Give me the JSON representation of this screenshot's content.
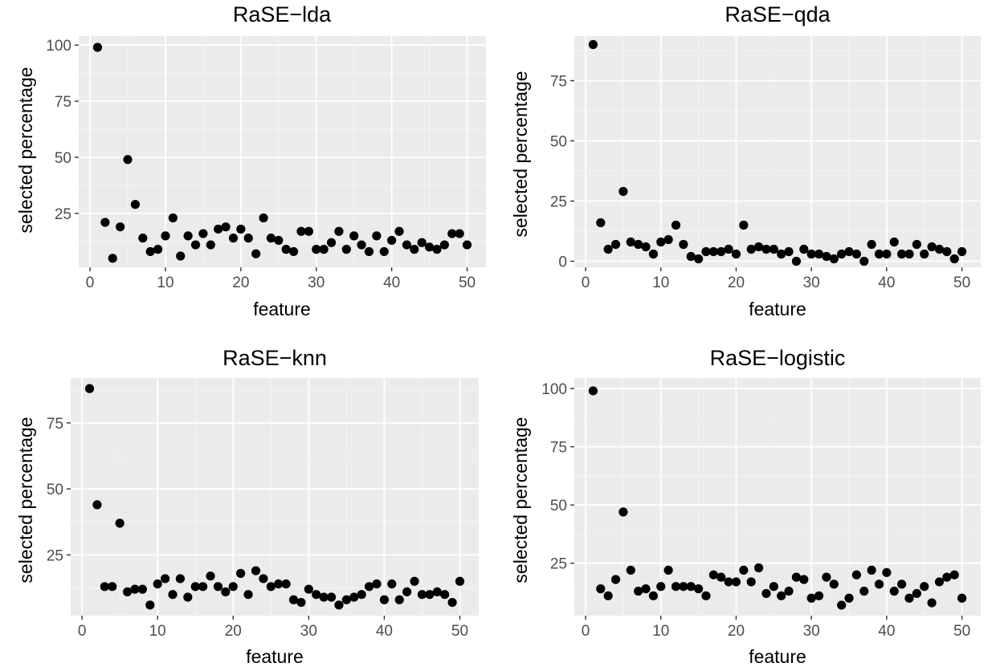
{
  "chart_data": [
    {
      "type": "scatter",
      "title": "RaSE−lda",
      "xlabel": "feature",
      "ylabel": "selected percentage",
      "xlim": [
        -1.5,
        52.5
      ],
      "ylim": [
        1,
        104
      ],
      "xticks": [
        0,
        10,
        20,
        30,
        40,
        50
      ],
      "yticks": [
        25,
        50,
        75,
        100
      ],
      "grid": true,
      "x": [
        1,
        2,
        3,
        4,
        5,
        6,
        7,
        8,
        9,
        10,
        11,
        12,
        13,
        14,
        15,
        16,
        17,
        18,
        19,
        20,
        21,
        22,
        23,
        24,
        25,
        26,
        27,
        28,
        29,
        30,
        31,
        32,
        33,
        34,
        35,
        36,
        37,
        38,
        39,
        40,
        41,
        42,
        43,
        44,
        45,
        46,
        47,
        48,
        49,
        50
      ],
      "y": [
        99,
        21,
        5,
        19,
        49,
        29,
        14,
        8,
        9,
        15,
        23,
        6,
        15,
        11,
        16,
        11,
        18,
        19,
        14,
        18,
        14,
        7,
        23,
        14,
        13,
        9,
        8,
        17,
        17,
        9,
        9,
        12,
        17,
        9,
        15,
        11,
        8,
        15,
        8,
        13,
        17,
        11,
        9,
        12,
        10,
        9,
        11,
        16,
        16,
        11
      ]
    },
    {
      "type": "scatter",
      "title": "RaSE−qda",
      "xlabel": "feature",
      "ylabel": "selected percentage",
      "xlim": [
        -1.5,
        52.5
      ],
      "ylim": [
        -2.5,
        93.5
      ],
      "xticks": [
        0,
        10,
        20,
        30,
        40,
        50
      ],
      "yticks": [
        0,
        25,
        50,
        75
      ],
      "grid": true,
      "x": [
        1,
        2,
        3,
        4,
        5,
        6,
        7,
        8,
        9,
        10,
        11,
        12,
        13,
        14,
        15,
        16,
        17,
        18,
        19,
        20,
        21,
        22,
        23,
        24,
        25,
        26,
        27,
        28,
        29,
        30,
        31,
        32,
        33,
        34,
        35,
        36,
        37,
        38,
        39,
        40,
        41,
        42,
        43,
        44,
        45,
        46,
        47,
        48,
        49,
        50
      ],
      "y": [
        90,
        16,
        5,
        7,
        29,
        8,
        7,
        6,
        3,
        8,
        9,
        15,
        7,
        2,
        1,
        4,
        4,
        4,
        5,
        3,
        15,
        5,
        6,
        5,
        5,
        3,
        4,
        0,
        5,
        3,
        3,
        2,
        1,
        3,
        4,
        3,
        0,
        7,
        3,
        3,
        8,
        3,
        3,
        7,
        3,
        6,
        5,
        4,
        1,
        4
      ]
    },
    {
      "type": "scatter",
      "title": "RaSE−knn",
      "xlabel": "feature",
      "ylabel": "selected percentage",
      "xlim": [
        -1.5,
        52.5
      ],
      "ylim": [
        2,
        92
      ],
      "xticks": [
        0,
        10,
        20,
        30,
        40,
        50
      ],
      "yticks": [
        25,
        50,
        75
      ],
      "grid": true,
      "x": [
        1,
        2,
        3,
        4,
        5,
        6,
        7,
        8,
        9,
        10,
        11,
        12,
        13,
        14,
        15,
        16,
        17,
        18,
        19,
        20,
        21,
        22,
        23,
        24,
        25,
        26,
        27,
        28,
        29,
        30,
        31,
        32,
        33,
        34,
        35,
        36,
        37,
        38,
        39,
        40,
        41,
        42,
        43,
        44,
        45,
        46,
        47,
        48,
        49,
        50
      ],
      "y": [
        88,
        44,
        13,
        13,
        37,
        11,
        12,
        12,
        6,
        14,
        16,
        10,
        16,
        9,
        13,
        13,
        17,
        13,
        11,
        13,
        18,
        10,
        19,
        16,
        13,
        14,
        14,
        8,
        7,
        12,
        10,
        9,
        9,
        6,
        8,
        9,
        10,
        13,
        14,
        8,
        14,
        8,
        11,
        15,
        10,
        10,
        11,
        10,
        7,
        15
      ]
    },
    {
      "type": "scatter",
      "title": "RaSE−logistic",
      "xlabel": "feature",
      "ylabel": "selected percentage",
      "xlim": [
        -1.5,
        52.5
      ],
      "ylim": [
        2.5,
        104.5
      ],
      "xticks": [
        0,
        10,
        20,
        30,
        40,
        50
      ],
      "yticks": [
        25,
        50,
        75,
        100
      ],
      "grid": true,
      "x": [
        1,
        2,
        3,
        4,
        5,
        6,
        7,
        8,
        9,
        10,
        11,
        12,
        13,
        14,
        15,
        16,
        17,
        18,
        19,
        20,
        21,
        22,
        23,
        24,
        25,
        26,
        27,
        28,
        29,
        30,
        31,
        32,
        33,
        34,
        35,
        36,
        37,
        38,
        39,
        40,
        41,
        42,
        43,
        44,
        45,
        46,
        47,
        48,
        49,
        50
      ],
      "y": [
        99,
        14,
        11,
        18,
        47,
        22,
        13,
        14,
        11,
        15,
        22,
        15,
        15,
        15,
        14,
        11,
        20,
        19,
        17,
        17,
        22,
        17,
        23,
        12,
        15,
        11,
        13,
        19,
        18,
        10,
        11,
        19,
        16,
        7,
        10,
        20,
        13,
        22,
        16,
        21,
        13,
        16,
        10,
        12,
        15,
        8,
        17,
        19,
        20,
        10
      ]
    }
  ],
  "colors": {
    "panel_background": "#ebebeb",
    "grid_major": "#ffffff",
    "grid_minor": "#f5f5f5",
    "point": "#000000",
    "tick_label": "#4d4d4d",
    "tick_mark": "#333333"
  }
}
